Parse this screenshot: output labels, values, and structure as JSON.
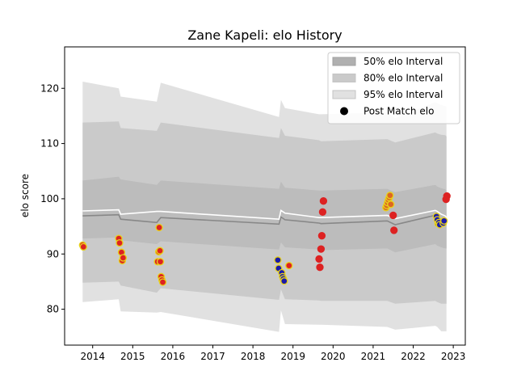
{
  "chart_data": {
    "type": "line",
    "title": "Zane Kapeli: elo History",
    "xlabel": "",
    "ylabel": "elo score",
    "xlim": [
      2013.3,
      2023.3
    ],
    "ylim": [
      73.5,
      127.5
    ],
    "x_ticks": [
      2014,
      2015,
      2016,
      2017,
      2018,
      2019,
      2020,
      2021,
      2022,
      2023
    ],
    "y_ticks": [
      80,
      90,
      100,
      110,
      120
    ],
    "grid": false,
    "legend_position": "top-right",
    "legend": [
      {
        "label": "50% elo Interval",
        "color": "#b0b0b0"
      },
      {
        "label": "80% elo Interval",
        "color": "#cacaca"
      },
      {
        "label": "95% elo Interval",
        "color": "#e1e1e1"
      },
      {
        "label": "Post Match elo",
        "color": "#000000"
      }
    ],
    "intervals": {
      "x": [
        2013.75,
        2014.65,
        2014.7,
        2015.6,
        2015.7,
        2018.65,
        2018.7,
        2018.8,
        2019.65,
        2019.7,
        2021.35,
        2021.55,
        2022.55,
        2022.6,
        2022.7,
        2022.8,
        2022.83
      ],
      "median": [
        96.9,
        97.1,
        96.3,
        95.7,
        96.6,
        95.4,
        96.7,
        96.2,
        95.6,
        95.5,
        96.0,
        95.3,
        97.0,
        96.8,
        96.2,
        96.0,
        96.0
      ],
      "band50": {
        "low": [
          92.8,
          93.0,
          92.5,
          91.8,
          92.3,
          90.8,
          92.1,
          91.2,
          90.8,
          90.7,
          91.0,
          90.3,
          91.8,
          91.5,
          91.2,
          91.0,
          91.0
        ],
        "high": [
          103.3,
          104.0,
          103.5,
          102.5,
          103.3,
          101.8,
          103.1,
          102.0,
          101.5,
          101.5,
          101.8,
          101.2,
          102.5,
          102.2,
          101.9,
          101.7,
          101.5
        ]
      },
      "band80": {
        "low": [
          84.8,
          85.0,
          84.3,
          83.0,
          83.8,
          81.7,
          83.6,
          81.8,
          81.6,
          81.5,
          81.5,
          81.0,
          81.5,
          81.3,
          81.0,
          81.0,
          81.0
        ]
      },
      "band95": {
        "low": [
          81.3,
          81.8,
          79.6,
          79.4,
          79.5,
          75.9,
          79.8,
          77.3,
          77.2,
          77.2,
          76.8,
          76.3,
          77.0,
          76.8,
          76.0,
          76.0,
          76.0
        ]
      },
      "band80_high": [
        113.8,
        114.0,
        112.8,
        112.3,
        113.8,
        111.0,
        112.8,
        111.4,
        110.6,
        110.4,
        110.8,
        110.2,
        112.0,
        111.8,
        111.6,
        111.5,
        111.3
      ],
      "band95_high": [
        121.2,
        120.0,
        118.5,
        117.6,
        121.0,
        114.8,
        117.9,
        116.4,
        115.3,
        115.3,
        115.6,
        114.6,
        117.5,
        117.3,
        117.0,
        116.8,
        116.6
      ],
      "mean": [
        97.8,
        98.0,
        97.2,
        97.7,
        97.7,
        96.3,
        97.9,
        97.4,
        96.6,
        96.6,
        97.0,
        96.4,
        97.9,
        97.7,
        97.2,
        96.9,
        96.6
      ]
    },
    "points": [
      {
        "x": 2013.75,
        "y": 91.6,
        "fill": "#dd2222",
        "edge": "#e8d21a"
      },
      {
        "x": 2013.77,
        "y": 91.3,
        "fill": "#dd2222",
        "edge": "#e8d21a"
      },
      {
        "x": 2014.65,
        "y": 92.8,
        "fill": "#dd2222",
        "edge": "#e8d21a"
      },
      {
        "x": 2014.67,
        "y": 92.0,
        "fill": "#dd2222",
        "edge": "#e8d21a"
      },
      {
        "x": 2014.72,
        "y": 90.3,
        "fill": "#dd2222",
        "edge": "#e8d21a"
      },
      {
        "x": 2014.74,
        "y": 88.8,
        "fill": "#dd2222",
        "edge": "#e8d21a"
      },
      {
        "x": 2014.76,
        "y": 89.3,
        "fill": "#dd2222",
        "edge": "#e8d21a"
      },
      {
        "x": 2015.62,
        "y": 88.6,
        "fill": "#dd2222",
        "edge": "#e8d21a"
      },
      {
        "x": 2015.65,
        "y": 90.4,
        "fill": "#dd2222",
        "edge": "#e8d21a"
      },
      {
        "x": 2015.66,
        "y": 94.8,
        "fill": "#dd2222",
        "edge": "#e8d21a"
      },
      {
        "x": 2015.68,
        "y": 90.6,
        "fill": "#dd2222",
        "edge": "#e8d21a"
      },
      {
        "x": 2015.69,
        "y": 88.6,
        "fill": "#dd2222",
        "edge": "#e8d21a"
      },
      {
        "x": 2015.71,
        "y": 85.9,
        "fill": "#dd2222",
        "edge": "#e8d21a"
      },
      {
        "x": 2015.73,
        "y": 85.3,
        "fill": "#dd2222",
        "edge": "#e8d21a"
      },
      {
        "x": 2015.75,
        "y": 84.9,
        "fill": "#dd2222",
        "edge": "#e8d21a"
      },
      {
        "x": 2018.62,
        "y": 88.9,
        "fill": "#1a1aaa",
        "edge": "#e8d21a"
      },
      {
        "x": 2018.64,
        "y": 87.4,
        "fill": "#1a1aaa",
        "edge": "#e8d21a"
      },
      {
        "x": 2018.72,
        "y": 86.6,
        "fill": "#1a1aaa",
        "edge": "#e8d21a"
      },
      {
        "x": 2018.74,
        "y": 85.9,
        "fill": "#1a1aaa",
        "edge": "#e8d21a"
      },
      {
        "x": 2018.76,
        "y": 85.5,
        "fill": "#1a1aaa",
        "edge": "#e8d21a"
      },
      {
        "x": 2018.78,
        "y": 85.1,
        "fill": "#1a1aaa",
        "edge": "#e8d21a"
      },
      {
        "x": 2018.9,
        "y": 87.9,
        "fill": "#dd2222",
        "edge": "#e8d21a"
      },
      {
        "x": 2019.65,
        "y": 89.1,
        "fill": "#dd2222",
        "edge": "#dd2222"
      },
      {
        "x": 2019.67,
        "y": 87.6,
        "fill": "#dd2222",
        "edge": "#dd2222"
      },
      {
        "x": 2019.7,
        "y": 90.9,
        "fill": "#dd2222",
        "edge": "#dd2222"
      },
      {
        "x": 2019.72,
        "y": 93.3,
        "fill": "#dd2222",
        "edge": "#dd2222"
      },
      {
        "x": 2019.74,
        "y": 97.6,
        "fill": "#dd2222",
        "edge": "#dd2222"
      },
      {
        "x": 2019.76,
        "y": 99.6,
        "fill": "#dd2222",
        "edge": "#dd2222"
      },
      {
        "x": 2021.32,
        "y": 98.4,
        "fill": "#dd6622",
        "edge": "#e8d21a"
      },
      {
        "x": 2021.34,
        "y": 98.8,
        "fill": "#dd6622",
        "edge": "#e8d21a"
      },
      {
        "x": 2021.36,
        "y": 99.3,
        "fill": "#dd6622",
        "edge": "#e8d21a"
      },
      {
        "x": 2021.38,
        "y": 99.8,
        "fill": "#dd6622",
        "edge": "#e8d21a"
      },
      {
        "x": 2021.4,
        "y": 100.2,
        "fill": "#dd6622",
        "edge": "#e8d21a"
      },
      {
        "x": 2021.42,
        "y": 100.6,
        "fill": "#dd6622",
        "edge": "#e8d21a"
      },
      {
        "x": 2021.44,
        "y": 99.0,
        "fill": "#dd6622",
        "edge": "#e8d21a"
      },
      {
        "x": 2021.5,
        "y": 97.0,
        "fill": "#dd2222",
        "edge": "#dd2222"
      },
      {
        "x": 2021.52,
        "y": 94.3,
        "fill": "#dd2222",
        "edge": "#dd2222"
      },
      {
        "x": 2022.58,
        "y": 96.8,
        "fill": "#1a1aaa",
        "edge": "#e8d21a"
      },
      {
        "x": 2022.6,
        "y": 96.2,
        "fill": "#1a1aaa",
        "edge": "#e8d21a"
      },
      {
        "x": 2022.62,
        "y": 95.5,
        "fill": "#1a1aaa",
        "edge": "#e8d21a"
      },
      {
        "x": 2022.64,
        "y": 95.7,
        "fill": "#1a1aaa",
        "edge": "#e8d21a"
      },
      {
        "x": 2022.66,
        "y": 95.3,
        "fill": "#1a1aaa",
        "edge": "#e8d21a"
      },
      {
        "x": 2022.75,
        "y": 95.6,
        "fill": "#1a1aaa",
        "edge": "#e8d21a"
      },
      {
        "x": 2022.77,
        "y": 96.0,
        "fill": "#1a1aaa",
        "edge": "#e8d21a"
      },
      {
        "x": 2022.82,
        "y": 99.9,
        "fill": "#dd2222",
        "edge": "#dd2222"
      },
      {
        "x": 2022.84,
        "y": 100.5,
        "fill": "#dd2222",
        "edge": "#dd2222"
      }
    ]
  }
}
